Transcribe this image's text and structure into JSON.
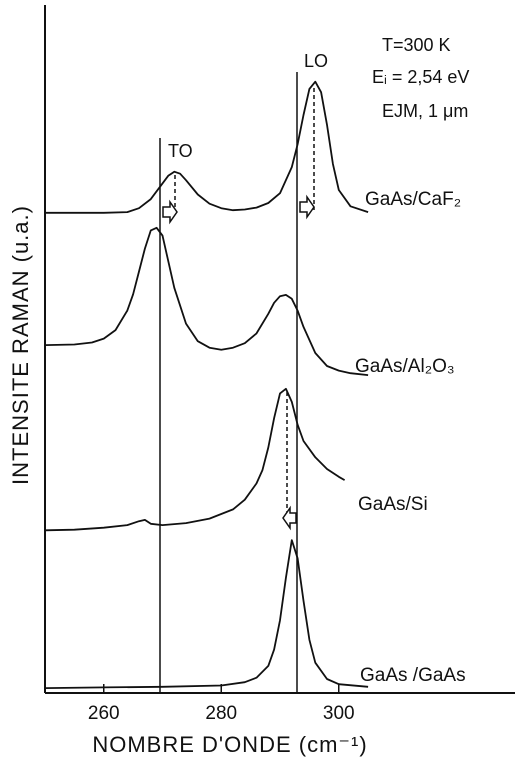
{
  "chart_data": {
    "type": "line",
    "x_label": "NOMBRE D'ONDE (cm⁻¹)",
    "y_label": "INTENSITE RAMAN (u.a.)",
    "annotations": [
      "T=300 K",
      "Eᵢ = 2,54 eV",
      "EJM, 1 μm",
      "TO",
      "LO"
    ],
    "xlim": [
      250,
      330
    ],
    "ylim": [
      0,
      100
    ],
    "xticks": [
      260,
      280,
      300
    ],
    "color": "#111111",
    "series": [
      {
        "name": "GaAs/CaF₂",
        "x": [
          250,
          255,
          260,
          264,
          266,
          268,
          270,
          271,
          272,
          273,
          274,
          276,
          278,
          280,
          282,
          284,
          286,
          288,
          290,
          292,
          293,
          294,
          295,
          296,
          297,
          298,
          299,
          300,
          302,
          305
        ],
        "values": [
          73.5,
          73.5,
          73.5,
          73.6,
          74.2,
          75.6,
          78.0,
          79.2,
          79.8,
          79.5,
          78.5,
          76.3,
          74.9,
          74.2,
          73.9,
          74.0,
          74.3,
          75.0,
          76.5,
          80.5,
          84,
          88.5,
          92.5,
          93.6,
          92,
          87,
          81,
          77,
          74.5,
          73.6
        ]
      },
      {
        "name": "GaAs/Al₂O₃",
        "x": [
          250,
          255,
          258,
          260,
          262,
          264,
          265,
          266,
          267,
          268,
          269,
          270,
          271,
          272,
          274,
          276,
          278,
          280,
          282,
          284,
          286,
          288,
          289,
          290,
          291,
          292,
          293,
          294,
          296,
          298,
          300,
          302,
          305
        ],
        "values": [
          53.2,
          53.3,
          53.6,
          54.2,
          55.5,
          58.5,
          61,
          64.5,
          68,
          70.8,
          71.2,
          70,
          66,
          62,
          56.5,
          53.8,
          52.8,
          52.5,
          52.8,
          53.5,
          55,
          58,
          59.7,
          60.7,
          60.9,
          60.3,
          58.5,
          56,
          52,
          50,
          49.3,
          48.9,
          48.6
        ]
      },
      {
        "name": "GaAs/Si",
        "x": [
          250,
          255,
          260,
          264,
          266,
          267,
          268,
          270,
          274,
          278,
          282,
          284,
          286,
          287,
          288,
          289,
          290,
          291,
          292,
          293,
          294,
          296,
          298,
          300,
          301
        ],
        "values": [
          24.8,
          24.9,
          25.2,
          25.6,
          26.2,
          26.4,
          25.8,
          25.6,
          25.9,
          26.6,
          28,
          29.5,
          32,
          34,
          37.5,
          42,
          45.8,
          46.5,
          44.5,
          41,
          38.5,
          36,
          34.2,
          33,
          32.5
        ]
      },
      {
        "name": "GaAs /GaAs",
        "x": [
          250,
          260,
          270,
          280,
          284,
          286,
          288,
          289,
          290,
          291,
          292,
          293,
          294,
          295,
          296,
          298,
          300,
          305
        ],
        "values": [
          0.6,
          0.7,
          0.8,
          1,
          1.5,
          2.2,
          4,
          6.5,
          11,
          17.5,
          23.3,
          20.5,
          14,
          8,
          4.5,
          2,
          1.2,
          0.8
        ]
      }
    ]
  }
}
